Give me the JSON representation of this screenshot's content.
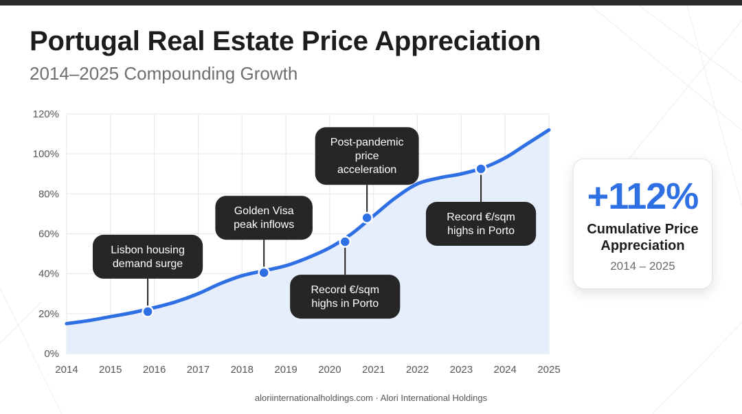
{
  "header": {
    "title": "Portugal Real Estate Price Appreciation",
    "subtitle": "2014–2025 Compounding Growth"
  },
  "chart_data": {
    "type": "area",
    "x": [
      2014,
      2014.5,
      2015,
      2015.5,
      2016,
      2016.5,
      2017,
      2017.5,
      2018,
      2018.5,
      2019,
      2019.5,
      2020,
      2020.5,
      2021,
      2021.5,
      2022,
      2022.5,
      2023,
      2023.5,
      2024,
      2024.5,
      2025
    ],
    "series": [
      {
        "values": [
          15,
          16.5,
          18.5,
          20.5,
          23,
          26,
          30,
          35,
          39,
          41.5,
          44,
          48,
          53,
          60,
          69,
          78,
          85,
          88,
          90,
          93,
          98,
          105,
          112
        ]
      }
    ],
    "xlim": [
      2014,
      2025
    ],
    "ylim": [
      0,
      120
    ],
    "x_ticks": [
      2014,
      2015,
      2016,
      2017,
      2018,
      2019,
      2020,
      2021,
      2022,
      2023,
      2024,
      2025
    ],
    "y_ticks": [
      "0%",
      "20%",
      "40%",
      "60%",
      "80%",
      "100%",
      "120%"
    ],
    "grid": true,
    "line_color": "#2f6fe4",
    "fill_color": "#e6edfb",
    "annotations": [
      {
        "x": 2015.85,
        "y": 21,
        "text": [
          "Lisbon housing",
          "demand surge"
        ],
        "label_position": "above"
      },
      {
        "x": 2018.5,
        "y": 40.5,
        "text": [
          "Golden Visa",
          "peak inflows"
        ],
        "label_position": "above"
      },
      {
        "x": 2020.35,
        "y": 56,
        "text": [
          "Record €/sqm",
          "highs in Porto"
        ],
        "label_position": "below"
      },
      {
        "x": 2020.85,
        "y": 68,
        "text": [
          "Post-pandemic",
          "price",
          "acceleration"
        ],
        "label_position": "above"
      },
      {
        "x": 2023.45,
        "y": 92.5,
        "text": [
          "Record €/sqm",
          "highs in Porto"
        ],
        "label_position": "below"
      }
    ]
  },
  "stat_card": {
    "value": "+112%",
    "label": "Cumulative Price Appreciation",
    "period": "2014 – 2025"
  },
  "footer": {
    "text": "aloriinternationalholdings.com · Alori International Holdings"
  }
}
